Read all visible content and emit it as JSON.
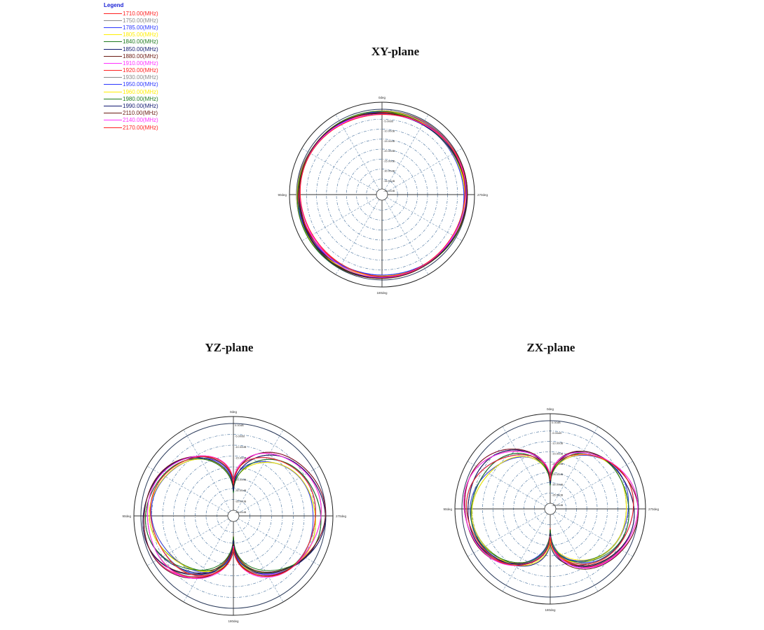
{
  "legend": {
    "title": "Legend",
    "entries": [
      {
        "label": "1710.00(MHz)",
        "color": "#ff2020"
      },
      {
        "label": "1750.00(MHz)",
        "color": "#8a8a8a"
      },
      {
        "label": "1785.00(MHz)",
        "color": "#2a36ff"
      },
      {
        "label": "1805.00(MHz)",
        "color": "#ffee00"
      },
      {
        "label": "1840.00(MHz)",
        "color": "#1e7a1e"
      },
      {
        "label": "1850.00(MHz)",
        "color": "#101870"
      },
      {
        "label": "1880.00(MHz)",
        "color": "#6a1a12"
      },
      {
        "label": "1910.00(MHz)",
        "color": "#ff30ff"
      },
      {
        "label": "1920.00(MHz)",
        "color": "#ff2020"
      },
      {
        "label": "1930.00(MHz)",
        "color": "#8a8a8a"
      },
      {
        "label": "1950.00(MHz)",
        "color": "#2a36ff"
      },
      {
        "label": "1960.00(MHz)",
        "color": "#ffee00"
      },
      {
        "label": "1980.00(MHz)",
        "color": "#1e7a1e"
      },
      {
        "label": "1990.00(MHz)",
        "color": "#101870"
      },
      {
        "label": "2110.00(MHz)",
        "color": "#6a1a12"
      },
      {
        "label": "2140.00(MHz)",
        "color": "#ff30ff"
      },
      {
        "label": "2170.00(MHz)",
        "color": "#ff2020"
      }
    ]
  },
  "plots": {
    "xy": {
      "title": "XY-plane",
      "angle_top": "0deg",
      "angle_right": "270deg",
      "angle_bottom": "180deg",
      "angle_left": "90deg"
    },
    "yz": {
      "title": "YZ-plane",
      "angle_top": "0deg",
      "angle_right": "270deg",
      "angle_bottom": "180deg",
      "angle_left": "90deg"
    },
    "zx": {
      "title": "ZX-plane",
      "angle_top": "0deg",
      "angle_right": "270deg",
      "angle_bottom": "180deg",
      "angle_left": "90deg"
    }
  },
  "chart_data": [
    {
      "type": "line",
      "subtype": "polar",
      "title": "XY-plane",
      "r_labels": [
        "0.00dB",
        "-5.00dB",
        "-10.00dB",
        "-15.00dB",
        "-20.00dB",
        "-25.00dB",
        "-30.00dB",
        "-35.00dB",
        "-40.00dB"
      ],
      "angle_ticks": [
        "0deg",
        "90deg",
        "180deg",
        "270deg"
      ],
      "r_range": [
        -40,
        0
      ],
      "pattern": "omnidirectional",
      "gain_db_by_frequency": [
        -1.2,
        -1.0,
        -1.5,
        -1.1,
        -0.9,
        -1.3,
        -1.0,
        -1.6,
        -1.2,
        -1.0,
        -1.4,
        -1.1,
        -0.9,
        -1.2,
        -1.0,
        -1.5,
        -1.8
      ]
    },
    {
      "type": "line",
      "subtype": "polar",
      "title": "YZ-plane",
      "r_labels": [
        "0.00dB",
        "-5.00dB",
        "-10.00dB",
        "-15.00dB",
        "-20.00dB",
        "-25.00dB",
        "-30.00dB",
        "-35.00dB",
        "-40.00dB"
      ],
      "angle_ticks": [
        "0deg",
        "90deg",
        "180deg",
        "270deg"
      ],
      "r_range": [
        -40,
        0
      ],
      "pattern": "figure-eight with nulls at 0deg and 180deg"
    },
    {
      "type": "line",
      "subtype": "polar",
      "title": "ZX-plane",
      "r_labels": [
        "0.00dB",
        "-5.00dB",
        "-10.00dB",
        "-15.00dB",
        "-20.00dB",
        "-25.00dB",
        "-30.00dB",
        "-35.00dB",
        "-40.00dB"
      ],
      "angle_ticks": [
        "0deg",
        "90deg",
        "180deg",
        "270deg"
      ],
      "r_range": [
        -40,
        0
      ],
      "pattern": "figure-eight with nulls at 0deg and 180deg"
    }
  ]
}
